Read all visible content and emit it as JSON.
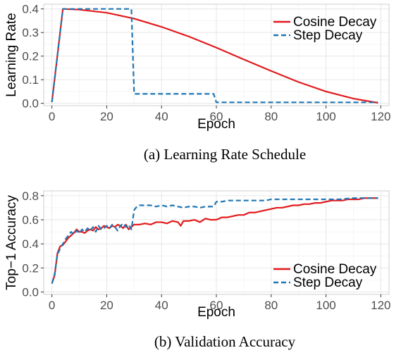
{
  "chart_data": [
    {
      "type": "line",
      "caption": "(a) Learning Rate Schedule",
      "xlabel": "Epoch",
      "ylabel": "Learning Rate",
      "xlim": [
        -3,
        123
      ],
      "ylim": [
        -0.01,
        0.42
      ],
      "xticks": [
        0,
        20,
        40,
        60,
        80,
        100,
        120
      ],
      "yticks": [
        0.0,
        0.1,
        0.2,
        0.3,
        0.4
      ],
      "ytick_format": 1,
      "grid": true,
      "legend_position": "top-right",
      "series": [
        {
          "name": "Cosine Decay",
          "color": "#e31a1c",
          "style": "solid",
          "x": [
            0,
            4,
            10,
            20,
            30,
            40,
            50,
            60,
            70,
            80,
            90,
            100,
            110,
            119
          ],
          "y": [
            0.005,
            0.4,
            0.397,
            0.384,
            0.359,
            0.324,
            0.283,
            0.236,
            0.186,
            0.137,
            0.09,
            0.05,
            0.02,
            0.002
          ]
        },
        {
          "name": "Step Decay",
          "color": "#1f77b4",
          "style": "dashed",
          "x": [
            0,
            4,
            29,
            30,
            59,
            60,
            119
          ],
          "y": [
            0.005,
            0.4,
            0.4,
            0.04,
            0.04,
            0.004,
            0.004
          ]
        }
      ]
    },
    {
      "type": "line",
      "caption": "(b) Validation Accuracy",
      "xlabel": "Epoch",
      "ylabel": "Top−1 Accuracy",
      "xlim": [
        -3,
        123
      ],
      "ylim": [
        -0.02,
        0.84
      ],
      "xticks": [
        0,
        20,
        40,
        60,
        80,
        100,
        120
      ],
      "yticks": [
        0.0,
        0.2,
        0.4,
        0.6,
        0.8
      ],
      "ytick_format": 1,
      "grid": true,
      "legend_position": "bottom-right",
      "series": [
        {
          "name": "Cosine Decay",
          "color": "#e31a1c",
          "style": "solid",
          "x": [
            0,
            1,
            2,
            3,
            4,
            5,
            6,
            7,
            8,
            9,
            10,
            11,
            12,
            13,
            14,
            15,
            16,
            17,
            18,
            19,
            20,
            21,
            22,
            23,
            24,
            25,
            26,
            27,
            28,
            29,
            30,
            32,
            34,
            36,
            38,
            40,
            42,
            44,
            46,
            47,
            48,
            50,
            52,
            54,
            56,
            58,
            60,
            62,
            64,
            66,
            68,
            70,
            72,
            74,
            76,
            78,
            80,
            82,
            84,
            86,
            88,
            90,
            92,
            94,
            96,
            98,
            100,
            102,
            104,
            106,
            108,
            110,
            112,
            114,
            116,
            118,
            119
          ],
          "y": [
            0.07,
            0.14,
            0.32,
            0.38,
            0.39,
            0.42,
            0.45,
            0.47,
            0.49,
            0.52,
            0.5,
            0.5,
            0.49,
            0.51,
            0.52,
            0.51,
            0.54,
            0.52,
            0.53,
            0.55,
            0.54,
            0.53,
            0.55,
            0.54,
            0.56,
            0.55,
            0.53,
            0.56,
            0.52,
            0.54,
            0.56,
            0.56,
            0.57,
            0.56,
            0.58,
            0.58,
            0.57,
            0.59,
            0.58,
            0.55,
            0.59,
            0.59,
            0.6,
            0.58,
            0.61,
            0.6,
            0.6,
            0.62,
            0.62,
            0.63,
            0.64,
            0.64,
            0.66,
            0.66,
            0.67,
            0.68,
            0.69,
            0.7,
            0.7,
            0.71,
            0.72,
            0.72,
            0.73,
            0.73,
            0.74,
            0.74,
            0.75,
            0.76,
            0.76,
            0.76,
            0.77,
            0.77,
            0.77,
            0.78,
            0.78,
            0.78,
            0.78
          ]
        },
        {
          "name": "Step Decay",
          "color": "#1f77b4",
          "style": "dashed",
          "x": [
            0,
            1,
            2,
            3,
            4,
            5,
            6,
            7,
            8,
            9,
            10,
            11,
            12,
            13,
            14,
            15,
            16,
            17,
            18,
            19,
            20,
            21,
            22,
            23,
            24,
            25,
            26,
            27,
            28,
            29,
            30,
            31,
            32,
            34,
            36,
            38,
            40,
            42,
            44,
            46,
            48,
            50,
            52,
            54,
            56,
            58,
            59,
            60,
            62,
            64,
            66,
            68,
            70,
            72,
            74,
            76,
            78,
            80,
            85,
            90,
            95,
            100,
            105,
            110,
            115,
            119
          ],
          "y": [
            0.07,
            0.15,
            0.31,
            0.36,
            0.4,
            0.44,
            0.47,
            0.5,
            0.48,
            0.51,
            0.49,
            0.52,
            0.5,
            0.53,
            0.51,
            0.54,
            0.5,
            0.55,
            0.52,
            0.53,
            0.55,
            0.53,
            0.56,
            0.54,
            0.51,
            0.55,
            0.57,
            0.54,
            0.56,
            0.52,
            0.68,
            0.71,
            0.72,
            0.72,
            0.72,
            0.71,
            0.72,
            0.71,
            0.72,
            0.71,
            0.7,
            0.71,
            0.71,
            0.7,
            0.71,
            0.71,
            0.71,
            0.75,
            0.75,
            0.76,
            0.76,
            0.76,
            0.76,
            0.76,
            0.76,
            0.76,
            0.76,
            0.77,
            0.77,
            0.77,
            0.77,
            0.77,
            0.77,
            0.78,
            0.78,
            0.78
          ]
        }
      ]
    }
  ]
}
